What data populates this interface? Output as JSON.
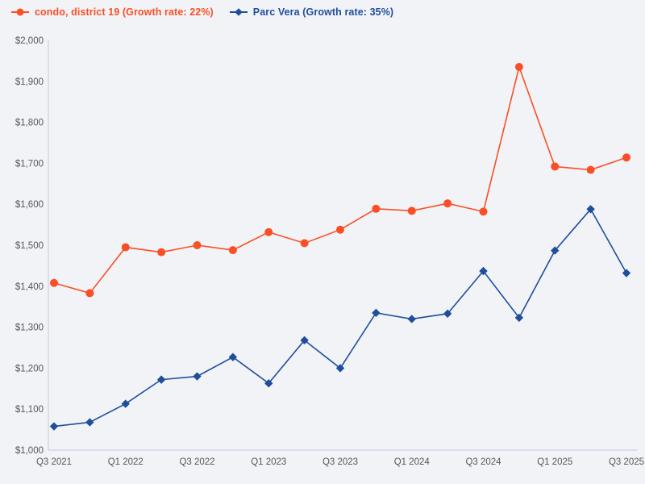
{
  "chart_data": {
    "type": "line",
    "title": "",
    "xlabel": "",
    "ylabel": "",
    "categories": [
      "Q3 2021",
      "Q4 2021",
      "Q1 2022",
      "Q2 2022",
      "Q3 2022",
      "Q4 2022",
      "Q1 2023",
      "Q2 2023",
      "Q3 2023",
      "Q4 2023",
      "Q1 2024",
      "Q2 2024",
      "Q3 2024",
      "Q4 2024",
      "Q1 2025",
      "Q2 2025",
      "Q3 2025"
    ],
    "x_tick_labels_shown": [
      "Q3 2021",
      "Q1 2022",
      "Q3 2022",
      "Q1 2023",
      "Q3 2023",
      "Q1 2024",
      "Q3 2024",
      "Q1 2025",
      "Q3 2025"
    ],
    "x_tick_every": 2,
    "series": [
      {
        "name": "condo, district 19",
        "legend_label": "condo, district 19 (Growth rate: 22%)",
        "growth_rate": "22%",
        "color": "#fa4f26",
        "marker": "circle",
        "values": [
          1408,
          1383,
          1495,
          1483,
          1500,
          1488,
          1532,
          1505,
          1538,
          1589,
          1584,
          1602,
          1582,
          1935,
          1692,
          1684,
          1714
        ]
      },
      {
        "name": "Parc Vera",
        "legend_label": "Parc Vera (Growth rate: 35%)",
        "growth_rate": "35%",
        "color": "#1f4e9d",
        "marker": "diamond",
        "values": [
          1058,
          1068,
          1113,
          1172,
          1180,
          1227,
          1163,
          1268,
          1200,
          1335,
          1320,
          1333,
          1437,
          1323,
          1487,
          1588,
          1432
        ]
      }
    ],
    "yaxis": {
      "min": 1000,
      "max": 2000,
      "step": 100,
      "tick_format": "$#,###",
      "tick_labels": [
        "$2,000",
        "$1,900",
        "$1,800",
        "$1,700",
        "$1,600",
        "$1,500",
        "$1,400",
        "$1,300",
        "$1,200",
        "$1,100",
        "$1,000"
      ]
    },
    "grid": false,
    "legend_position": "top-left",
    "colors": {
      "background": "#f2f3f6",
      "axis_line": "#c9d3e6",
      "tick_text": "#54575c"
    }
  }
}
